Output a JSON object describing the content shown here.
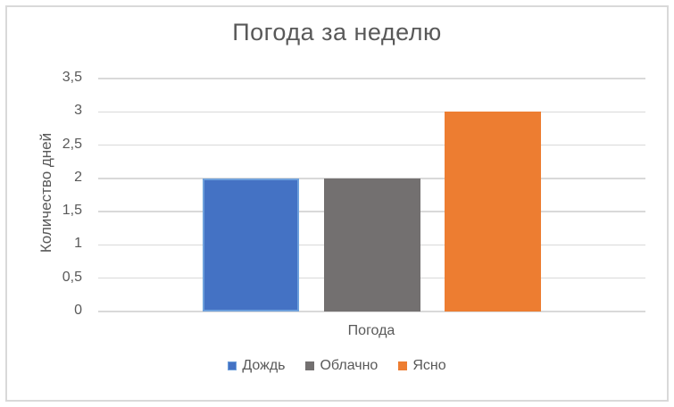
{
  "frame": {
    "background": "#FFFFFF",
    "border_color": "#D9D9D9"
  },
  "chart_data": {
    "type": "bar",
    "title": "Погода за неделю",
    "xlabel": "Погода",
    "ylabel": "Количество дней",
    "categories": [
      "Погода"
    ],
    "series": [
      {
        "name": "Дождь",
        "values": [
          2
        ],
        "color": "#4472C4",
        "border_color": "#6EA0DC"
      },
      {
        "name": "Облачно",
        "values": [
          2
        ],
        "color": "#737070"
      },
      {
        "name": "Ясно",
        "values": [
          3
        ],
        "color": "#ED7D31"
      }
    ],
    "ylim": [
      0,
      3.5
    ],
    "ytick_step": 0.5,
    "ytick_labels": [
      "0",
      "0,5",
      "1",
      "1,5",
      "2",
      "2,5",
      "3",
      "3,5"
    ],
    "grid": true,
    "gridline_color": "#D9D9D9",
    "text_color": "#595959",
    "legend_position": "bottom"
  }
}
